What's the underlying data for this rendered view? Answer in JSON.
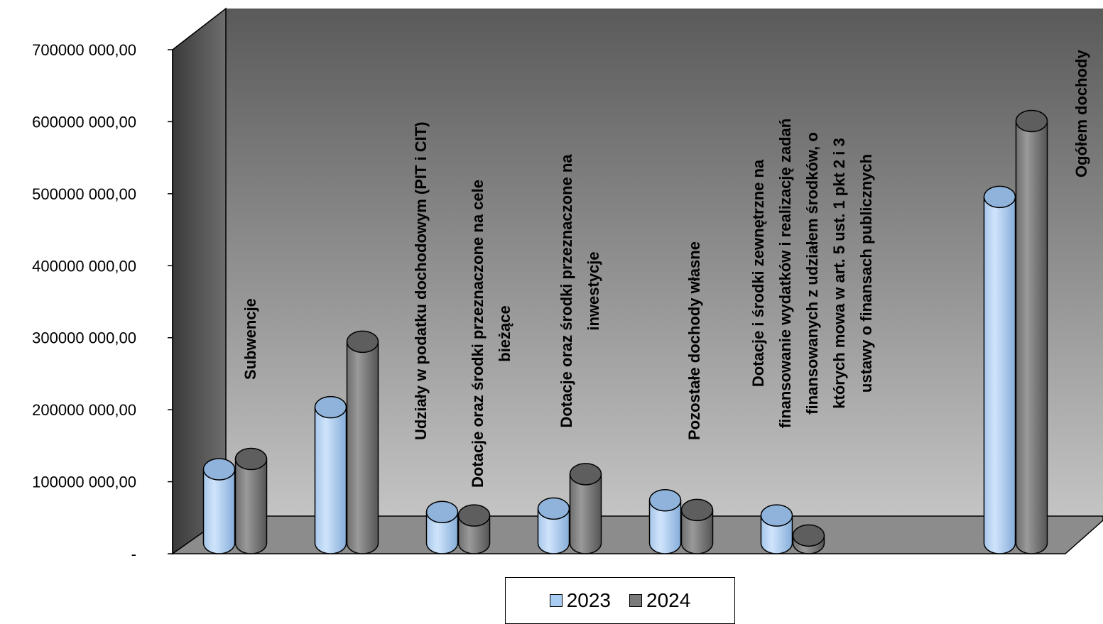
{
  "chart_data": {
    "type": "bar",
    "style": "3d-cylinder",
    "categories": [
      "Subwencje",
      "Udziały w podatku dochodowym (PIT i CIT)",
      "Dotacje oraz środki przeznaczone na cele bieżące",
      "Dotacje oraz środki przeznaczone na inwestycje",
      "Pozostałe dochody własne",
      "Dotacje i środki zewnętrzne na finansowanie wydatków i realizację zadań finansowanych z udziałem środków, o których mowa w art. 5 ust. 1 pkt 2 i 3 ustawy o finansach publicznych",
      "",
      "Ogółem dochody"
    ],
    "category_lines": [
      [
        "Subwencje"
      ],
      [
        "Udziały w podatku dochodowym (PIT i CIT)"
      ],
      [
        "Dotacje oraz środki przeznaczone na cele",
        "bieżące"
      ],
      [
        "Dotacje oraz środki przeznaczone na",
        "inwestycje"
      ],
      [
        "Pozostałe dochody własne"
      ],
      [
        "Dotacje i środki zewnętrzne na",
        "finansowanie wydatków i realizację zadań",
        "finansowanych z udziałem środków, o",
        "których mowa w art. 5 ust. 1 pkt 2 i 3",
        "ustawy o finansach publicznych"
      ],
      [],
      [
        "Ogółem dochody"
      ]
    ],
    "series": [
      {
        "name": "2023",
        "color": "#a9cdf2",
        "values": [
          107000000,
          197000000,
          45000000,
          50000000,
          62000000,
          40000000,
          null,
          502000000
        ]
      },
      {
        "name": "2024",
        "color": "#7a7a7a",
        "values": [
          122000000,
          292000000,
          40000000,
          100000000,
          48000000,
          11000000,
          null,
          612000000
        ]
      }
    ],
    "y_ticks": [
      "-",
      "100000 000,00",
      "200000 000,00",
      "300000 000,00",
      "400000 000,00",
      "500000 000,00",
      "600000 000,00",
      "700000 000,00"
    ],
    "ylim": [
      0,
      700000000
    ],
    "legend_position": "bottom",
    "grid": false
  }
}
